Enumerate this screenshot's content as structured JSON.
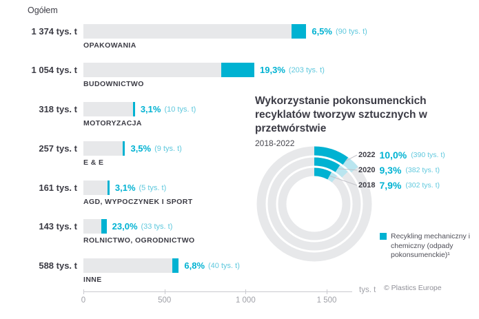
{
  "page": {
    "overall_label": "Ogółem",
    "unit_label": "tys. t",
    "copyright": "© Plastics Europe"
  },
  "colors": {
    "accent": "#00b2d2",
    "accent_light": "#b9e5ef",
    "bar_track": "#e7e8ea",
    "text_dark": "#3b3b44",
    "text_gray": "#9fa0a7"
  },
  "chart_data": [
    {
      "type": "bar",
      "orientation": "horizontal",
      "unit": "tys. t",
      "x_max": 1500,
      "x_ticks": [
        {
          "value": 0,
          "label": "0"
        },
        {
          "value": 500,
          "label": "500"
        },
        {
          "value": 1000,
          "label": "1 000"
        },
        {
          "value": 1500,
          "label": "1 500"
        }
      ],
      "rows": [
        {
          "category": "OPAKOWANIA",
          "total": 1374,
          "total_label": "1 374 tys. t",
          "recyclate": 90,
          "pct": 6.5,
          "pct_label": "6,5%",
          "amount_label": "(90 tys. t)"
        },
        {
          "category": "BUDOWNICTWO",
          "total": 1054,
          "total_label": "1 054 tys. t",
          "recyclate": 203,
          "pct": 19.3,
          "pct_label": "19,3%",
          "amount_label": "(203 tys. t)"
        },
        {
          "category": "MOTORYZACJA",
          "total": 318,
          "total_label": "318 tys. t",
          "recyclate": 10,
          "pct": 3.1,
          "pct_label": "3,1%",
          "amount_label": "(10 tys. t)"
        },
        {
          "category": "E & E",
          "total": 257,
          "total_label": "257 tys. t",
          "recyclate": 9,
          "pct": 3.5,
          "pct_label": "3,5%",
          "amount_label": "(9 tys. t)"
        },
        {
          "category": "AGD, WYPOCZYNEK I SPORT",
          "total": 161,
          "total_label": "161 tys. t",
          "recyclate": 5,
          "pct": 3.1,
          "pct_label": "3,1%",
          "amount_label": "(5 tys. t)"
        },
        {
          "category": "ROLNICTWO, OGRODNICTWO",
          "total": 143,
          "total_label": "143 tys. t",
          "recyclate": 33,
          "pct": 23.0,
          "pct_label": "23,0%",
          "amount_label": "(33 tys. t)"
        },
        {
          "category": "INNE",
          "total": 588,
          "total_label": "588 tys. t",
          "recyclate": 40,
          "pct": 6.8,
          "pct_label": "6,8%",
          "amount_label": "(40 tys. t)"
        }
      ]
    },
    {
      "type": "donut",
      "title": "Wykorzystanie pokonsumenckich recyklatów tworzyw sztucznych w przetwórstwie",
      "subtitle": "2018-2022",
      "rings": [
        {
          "year": "2022",
          "pct": 10.0,
          "pct_label": "10,0%",
          "amount_label": "(390 tys. t)"
        },
        {
          "year": "2020",
          "pct": 9.3,
          "pct_label": "9,3%",
          "amount_label": "(382 tys. t)"
        },
        {
          "year": "2018",
          "pct": 7.9,
          "pct_label": "7,9%",
          "amount_label": "(302 tys. t)"
        }
      ],
      "legend": "Recykling mechaniczny i chemiczny (odpady pokonsumenckie)¹"
    }
  ]
}
